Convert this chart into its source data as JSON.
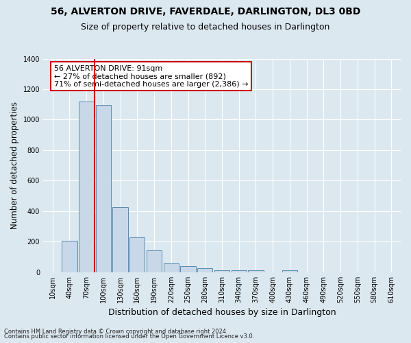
{
  "title": "56, ALVERTON DRIVE, FAVERDALE, DARLINGTON, DL3 0BD",
  "subtitle": "Size of property relative to detached houses in Darlington",
  "xlabel": "Distribution of detached houses by size in Darlington",
  "ylabel": "Number of detached properties",
  "footnote1": "Contains HM Land Registry data © Crown copyright and database right 2024.",
  "footnote2": "Contains public sector information licensed under the Open Government Licence v3.0.",
  "bin_labels": [
    "10sqm",
    "40sqm",
    "70sqm",
    "100sqm",
    "130sqm",
    "160sqm",
    "190sqm",
    "220sqm",
    "250sqm",
    "280sqm",
    "310sqm",
    "340sqm",
    "370sqm",
    "400sqm",
    "430sqm",
    "460sqm",
    "490sqm",
    "520sqm",
    "550sqm",
    "580sqm",
    "610sqm"
  ],
  "bar_values": [
    0,
    207,
    1120,
    1095,
    425,
    230,
    145,
    57,
    38,
    25,
    12,
    15,
    15,
    0,
    12,
    0,
    0,
    0,
    0,
    0,
    0
  ],
  "bar_color": "#c8d8e8",
  "bar_edge_color": "#5a8ab0",
  "ylim": [
    0,
    1400
  ],
  "yticks": [
    0,
    200,
    400,
    600,
    800,
    1000,
    1200,
    1400
  ],
  "red_line_x": 2.5,
  "annotation_title": "56 ALVERTON DRIVE: 91sqm",
  "annotation_line1": "← 27% of detached houses are smaller (892)",
  "annotation_line2": "71% of semi-detached houses are larger (2,386) →",
  "annotation_box_color": "#ffffff",
  "annotation_box_edge": "#cc0000",
  "red_line_color": "#cc0000",
  "bg_color": "#dce8f0",
  "grid_color": "#ffffff",
  "title_fontsize": 10,
  "subtitle_fontsize": 9,
  "ylabel_fontsize": 8.5,
  "xlabel_fontsize": 9,
  "tick_fontsize": 7,
  "footnote_fontsize": 6,
  "ann_fontsize": 8
}
